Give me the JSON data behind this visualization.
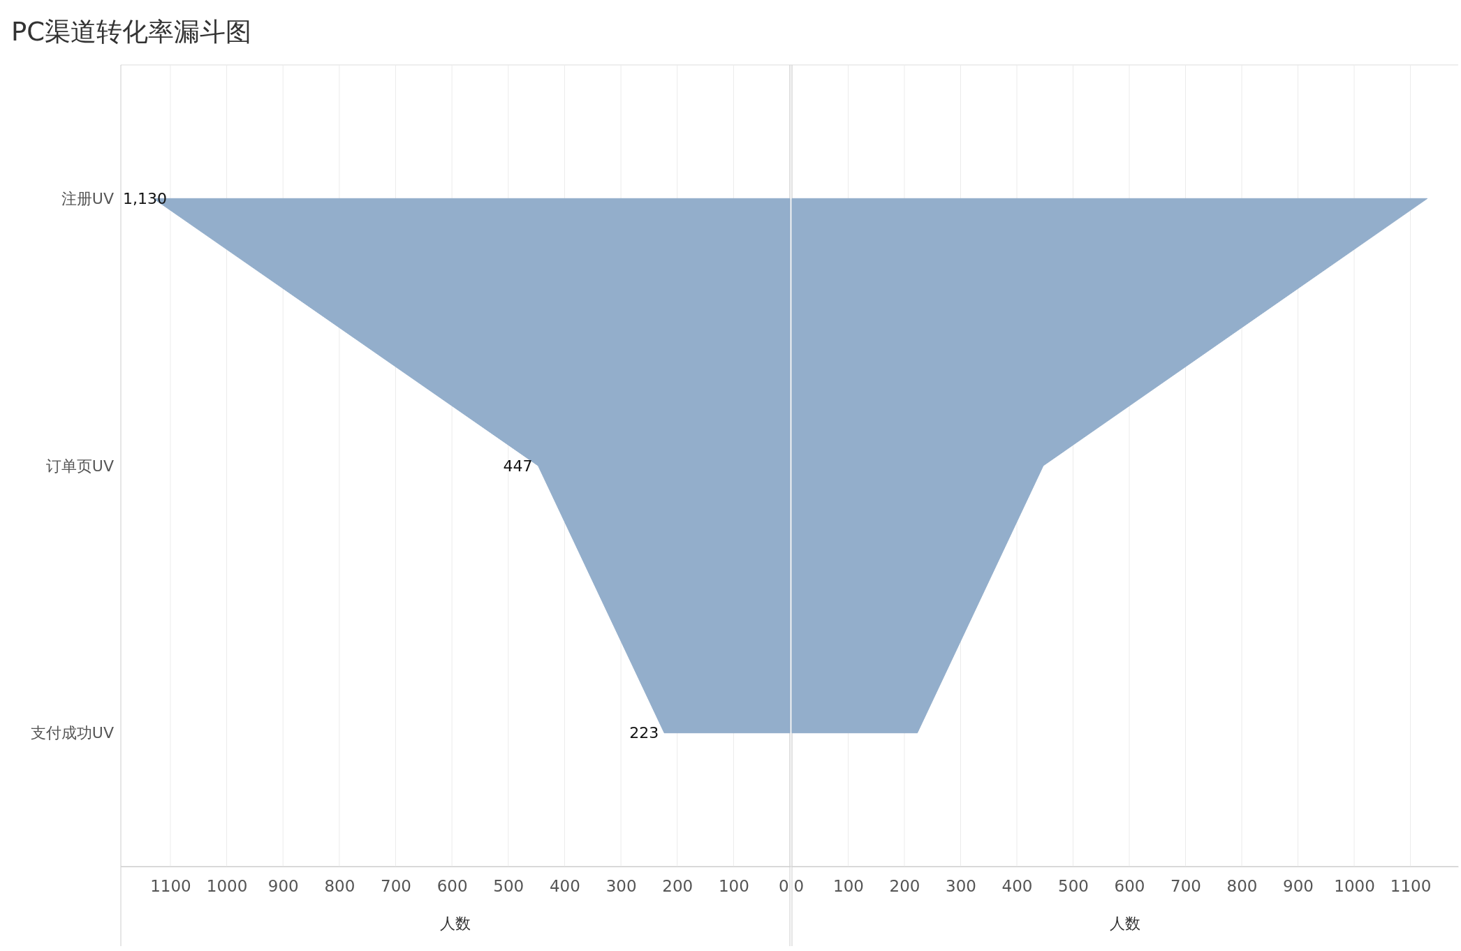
{
  "chart_data": [
    {
      "type": "area",
      "orientation": "horizontal",
      "title": "PC渠道转化率漏斗图",
      "categories": [
        "注册UV",
        "订单页UV",
        "支付成功UV"
      ],
      "values": [
        1130,
        447,
        223
      ],
      "color": "#93aecb",
      "xlim": [
        1188,
        0
      ],
      "xticks": [
        1100,
        1000,
        900,
        800,
        700,
        600,
        500,
        400,
        300,
        200,
        100,
        0
      ],
      "xlabel": "人数",
      "grid": "x",
      "value_labels": [
        "1,130",
        "447",
        "223"
      ]
    },
    {
      "type": "area",
      "orientation": "horizontal",
      "categories": [
        null,
        null,
        null
      ],
      "values": [
        1130,
        447,
        223
      ],
      "color": "#93aecb",
      "xlim": [
        0,
        1185
      ],
      "xticks": [
        0,
        100,
        200,
        300,
        400,
        500,
        600,
        700,
        800,
        900,
        1000,
        1100
      ],
      "xlabel": "人数",
      "grid": "x",
      "tick_labels": "x"
    }
  ]
}
